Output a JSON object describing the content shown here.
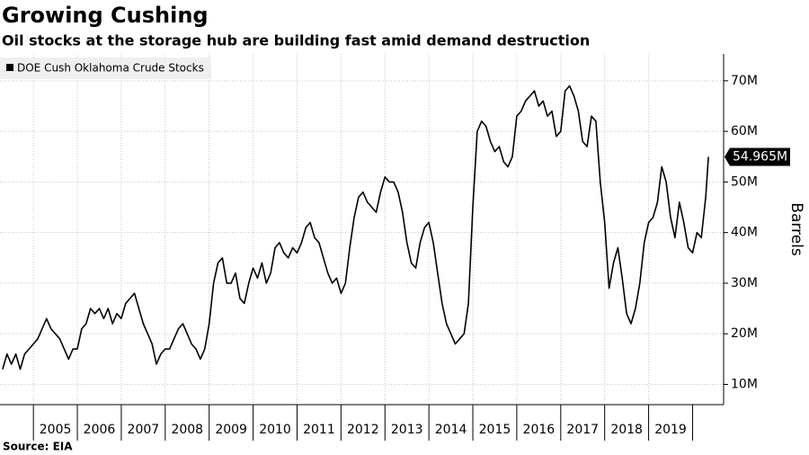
{
  "chart_data": {
    "type": "line",
    "title": "Growing Cushing",
    "subtitle": "Oil stocks at the storage hub are building fast amid demand destruction",
    "source": "Source: EIA",
    "y_axis_label": "Barrels",
    "legend_position": "top-left",
    "grid": true,
    "xlim": [
      2004.24,
      2020.42
    ],
    "xticks": [
      2005,
      2006,
      2007,
      2008,
      2009,
      2010,
      2011,
      2012,
      2013,
      2014,
      2015,
      2016,
      2017,
      2018,
      2019
    ],
    "ylim": [
      6000000,
      75300000
    ],
    "yticks": [
      {
        "value": 10000000,
        "label": "10M"
      },
      {
        "value": 20000000,
        "label": "20M"
      },
      {
        "value": 30000000,
        "label": "30M"
      },
      {
        "value": 40000000,
        "label": "40M"
      },
      {
        "value": 50000000,
        "label": "50M"
      },
      {
        "value": 60000000,
        "label": "60M"
      },
      {
        "value": 70000000,
        "label": "70M"
      }
    ],
    "x": [
      2004.3,
      2004.4,
      2004.5,
      2004.6,
      2004.7,
      2004.8,
      2004.9,
      2005.0,
      2005.1,
      2005.2,
      2005.3,
      2005.4,
      2005.5,
      2005.6,
      2005.7,
      2005.8,
      2005.9,
      2006.0,
      2006.1,
      2006.2,
      2006.3,
      2006.4,
      2006.5,
      2006.6,
      2006.7,
      2006.8,
      2006.9,
      2007.0,
      2007.1,
      2007.2,
      2007.3,
      2007.4,
      2007.5,
      2007.6,
      2007.7,
      2007.8,
      2007.9,
      2008.0,
      2008.1,
      2008.2,
      2008.3,
      2008.4,
      2008.5,
      2008.6,
      2008.7,
      2008.8,
      2008.9,
      2009.0,
      2009.1,
      2009.2,
      2009.3,
      2009.4,
      2009.5,
      2009.6,
      2009.7,
      2009.8,
      2009.9,
      2010.0,
      2010.1,
      2010.2,
      2010.3,
      2010.4,
      2010.5,
      2010.6,
      2010.7,
      2010.8,
      2010.9,
      2011.0,
      2011.1,
      2011.2,
      2011.3,
      2011.4,
      2011.5,
      2011.6,
      2011.7,
      2011.8,
      2011.9,
      2012.0,
      2012.1,
      2012.2,
      2012.3,
      2012.4,
      2012.5,
      2012.6,
      2012.7,
      2012.8,
      2012.9,
      2013.0,
      2013.1,
      2013.2,
      2013.3,
      2013.4,
      2013.5,
      2013.6,
      2013.7,
      2013.8,
      2013.9,
      2014.0,
      2014.1,
      2014.2,
      2014.3,
      2014.4,
      2014.5,
      2014.6,
      2014.7,
      2014.8,
      2014.9,
      2015.0,
      2015.1,
      2015.2,
      2015.3,
      2015.4,
      2015.5,
      2015.6,
      2015.7,
      2015.8,
      2015.9,
      2016.0,
      2016.1,
      2016.2,
      2016.3,
      2016.4,
      2016.5,
      2016.6,
      2016.7,
      2016.8,
      2016.9,
      2017.0,
      2017.1,
      2017.2,
      2017.3,
      2017.4,
      2017.5,
      2017.6,
      2017.7,
      2017.8,
      2017.9,
      2018.0,
      2018.1,
      2018.2,
      2018.3,
      2018.4,
      2018.5,
      2018.6,
      2018.7,
      2018.8,
      2018.9,
      2019.0,
      2019.1,
      2019.2,
      2019.3,
      2019.4,
      2019.5,
      2019.6,
      2019.7,
      2019.8,
      2019.9,
      2020.0,
      2020.1,
      2020.2,
      2020.3,
      2020.36
    ],
    "series": [
      {
        "name": "DOE Cush Oklahoma Crude Stocks",
        "color": "#000000",
        "values": [
          13000000,
          16000000,
          14000000,
          16000000,
          13000000,
          16000000,
          17000000,
          18000000,
          19000000,
          21000000,
          23000000,
          21000000,
          20000000,
          19000000,
          17000000,
          15000000,
          17000000,
          17000000,
          21000000,
          22000000,
          25000000,
          24000000,
          25000000,
          23000000,
          25000000,
          22000000,
          24000000,
          23000000,
          26000000,
          27000000,
          28000000,
          25000000,
          22000000,
          20000000,
          18000000,
          14000000,
          16000000,
          17000000,
          17000000,
          19000000,
          21000000,
          22000000,
          20000000,
          18000000,
          17000000,
          15000000,
          17000000,
          22000000,
          30000000,
          34000000,
          35000000,
          30000000,
          30000000,
          32000000,
          27000000,
          26000000,
          30000000,
          33000000,
          31000000,
          34000000,
          30000000,
          32000000,
          37000000,
          38000000,
          36000000,
          35000000,
          37000000,
          36000000,
          38000000,
          41000000,
          42000000,
          39000000,
          38000000,
          35000000,
          32000000,
          30000000,
          31000000,
          28000000,
          30000000,
          37000000,
          43000000,
          47000000,
          48000000,
          46000000,
          45000000,
          44000000,
          48000000,
          51000000,
          50000000,
          50000000,
          48000000,
          44000000,
          38000000,
          34000000,
          33000000,
          38000000,
          41000000,
          42000000,
          38000000,
          32000000,
          26000000,
          22000000,
          20000000,
          18000000,
          19000000,
          20000000,
          26000000,
          45000000,
          60000000,
          62000000,
          61000000,
          58000000,
          56000000,
          57000000,
          54000000,
          53000000,
          55000000,
          63000000,
          64000000,
          66000000,
          67000000,
          68000000,
          65000000,
          66000000,
          63000000,
          64000000,
          59000000,
          60000000,
          68000000,
          69000000,
          67000000,
          64000000,
          58000000,
          57000000,
          63000000,
          62000000,
          50000000,
          42000000,
          29000000,
          34000000,
          37000000,
          31000000,
          24000000,
          22000000,
          25000000,
          30000000,
          38000000,
          42000000,
          43000000,
          46000000,
          53000000,
          50000000,
          43000000,
          39000000,
          46000000,
          42000000,
          37000000,
          36000000,
          40000000,
          39000000,
          47000000,
          54965000
        ]
      }
    ],
    "annotations": [
      {
        "value": 54965000,
        "label": "54.965M"
      }
    ]
  }
}
